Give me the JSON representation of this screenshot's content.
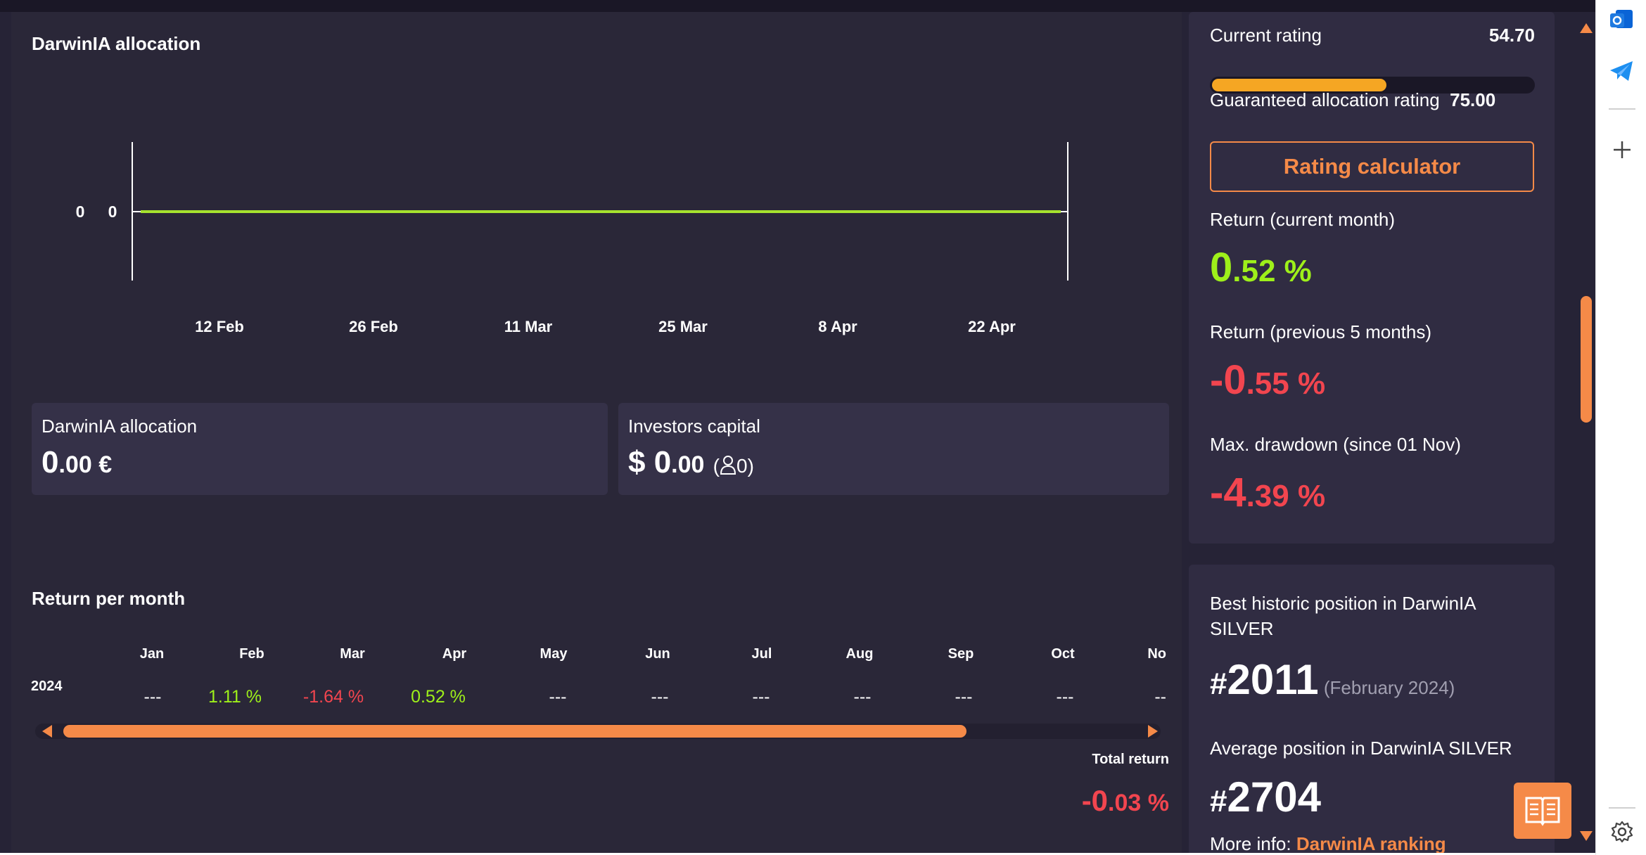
{
  "chart": {
    "title": "DarwinIA allocation",
    "y_labels": [
      "0",
      "0"
    ],
    "x_labels": [
      "12 Feb",
      "26 Feb",
      "11 Mar",
      "25 Mar",
      "8 Apr",
      "22 Apr"
    ]
  },
  "chart_data": {
    "type": "line",
    "title": "DarwinIA allocation",
    "x": [
      "12 Feb",
      "26 Feb",
      "11 Mar",
      "25 Mar",
      "8 Apr",
      "22 Apr"
    ],
    "series": [
      {
        "values": [
          0,
          0,
          0,
          0,
          0,
          0
        ]
      }
    ],
    "y_tick_labels": [
      "0",
      "0"
    ],
    "grid": false,
    "color": "#a6e22e"
  },
  "cards": {
    "allocation": {
      "label": "DarwinIA allocation",
      "whole": "0",
      "fraction": ".00 €"
    },
    "investors": {
      "label": "Investors capital",
      "whole": "$ 0",
      "fraction": ".00",
      "investors": "(",
      "investors_count": "0)"
    }
  },
  "returns_table": {
    "title": "Return per month",
    "months": [
      "Jan",
      "Feb",
      "Mar",
      "Apr",
      "May",
      "Jun",
      "Jul",
      "Aug",
      "Sep",
      "Oct",
      "No"
    ],
    "year": "2024",
    "values": [
      "---",
      "1.11 %",
      "-1.64 %",
      "0.52 %",
      "---",
      "---",
      "---",
      "---",
      "---",
      "---",
      "--"
    ],
    "total_label": "Total return",
    "total_whole": "-0",
    "total_fraction": ".03 %"
  },
  "rating": {
    "current_label": "Current rating",
    "current_value": "54.70",
    "progress": 0.547,
    "guaranteed_label": "Guaranteed allocation rating",
    "guaranteed_value": "75.00",
    "calculator_button": "Rating calculator"
  },
  "stats": {
    "current_month_label": "Return (current month)",
    "current_month_whole": "0",
    "current_month_fraction": ".52 %",
    "prev5_label": "Return (previous 5 months)",
    "prev5_whole": "-0",
    "prev5_fraction": ".55 %",
    "drawdown_label": "Max. drawdown (since 01 Nov)",
    "drawdown_whole": "-4",
    "drawdown_fraction": ".39 %"
  },
  "position": {
    "best_label_line1": "Best historic position in DarwinIA",
    "best_label_line2": "SILVER",
    "hash": "#",
    "best_value": "2011",
    "best_date": "(February 2024)",
    "avg_label": "Average position in DarwinIA SILVER",
    "avg_value": "2704",
    "more_info_label": "More info:",
    "more_info_link": "DarwinIA ranking"
  },
  "colors": {
    "accent": "#f58a48",
    "positive": "#9ef01a",
    "negative": "#f2454f",
    "line": "#a6e22e",
    "rating_fill": "#f5a623"
  },
  "icons": [
    "outlook-icon",
    "telegram-icon",
    "plus-icon",
    "settings-icon",
    "book-icon",
    "user-icon",
    "scroll-up-icon",
    "scroll-down-icon",
    "scroll-left-icon",
    "scroll-right-icon"
  ]
}
